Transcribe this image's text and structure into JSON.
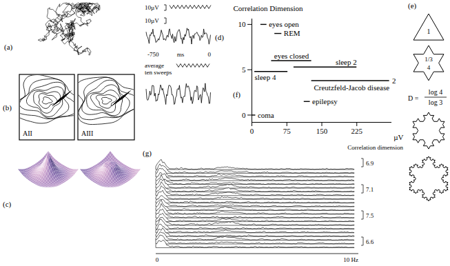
{
  "chart_data": {
    "type": "segment",
    "label": "(f)",
    "x_label": "µV",
    "y_label": "Correlation Dimension",
    "xlim": [
      0,
      300
    ],
    "xticks": [
      0,
      75,
      150,
      225
    ],
    "ylim": [
      -0.8,
      10.6
    ],
    "yticks": [
      0,
      5,
      10
    ],
    "color": "#000000",
    "series": [
      {
        "name": "eyes open",
        "x1": 19,
        "x2": 32,
        "y": 10
      },
      {
        "name": "REM",
        "x1": 49,
        "x2": 64,
        "y": 9
      },
      {
        "name": "eyes closed",
        "x1": 42,
        "x2": 128,
        "y": 6
      },
      {
        "name": "sleep 2",
        "x1": 90,
        "x2": 225,
        "y": 5.3
      },
      {
        "name": "sleep 4",
        "x1": 6,
        "x2": 77,
        "y": 4.8
      },
      {
        "name": "Creutzfeld-Jacob disease",
        "x1": 128,
        "x2": 295,
        "y": 3.8,
        "end_label": "2"
      },
      {
        "name": "epilepsy",
        "x1": 112,
        "x2": 125,
        "y": 1.5
      },
      {
        "name": "coma",
        "x1": 0,
        "x2": 8,
        "y": 0
      }
    ]
  },
  "panels": {
    "a": {
      "label": "(a)"
    },
    "b": {
      "label": "(b)",
      "maps": [
        "AII",
        "AIII"
      ]
    },
    "c": {
      "label": "(c)"
    },
    "d": {
      "label": "(d)",
      "scale_bars": [
        "10µV",
        "10µV"
      ],
      "time_axis": [
        "-750",
        "ms",
        "0"
      ],
      "average_label": [
        "average",
        "ten sweeps"
      ]
    },
    "e": {
      "label": "(e)",
      "side_label": "1",
      "segment_labels": [
        "1/3",
        "4"
      ],
      "dimension": {
        "lhs": "D =",
        "numerator": "log 4",
        "denominator": "log 3"
      }
    },
    "g": {
      "label": "(g)",
      "title": "Correlation dimension",
      "x_axis": [
        "0",
        "10 Hz"
      ],
      "row_labels": [
        "6.9",
        "7.1",
        "7.5",
        "6.6"
      ]
    }
  }
}
